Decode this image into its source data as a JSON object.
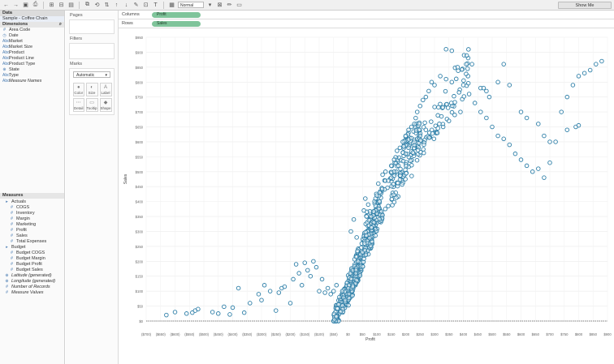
{
  "toolbar": {
    "marks_select": "Normal",
    "show_me_label": "Show Me"
  },
  "data_panel": {
    "header": "Data",
    "datasource": "Sample - Coffee Chain",
    "dimensions_header": "Dimensions",
    "dimensions": [
      {
        "label": "Area Code",
        "icon": "#"
      },
      {
        "label": "Date",
        "icon": "◷"
      },
      {
        "label": "Market",
        "icon": "Abc"
      },
      {
        "label": "Market Size",
        "icon": "Abc"
      },
      {
        "label": "Product",
        "icon": "Abc"
      },
      {
        "label": "Product Line",
        "icon": "Abc"
      },
      {
        "label": "Product Type",
        "icon": "Abc"
      },
      {
        "label": "State",
        "icon": "⊕"
      },
      {
        "label": "Type",
        "icon": "Abc"
      },
      {
        "label": "Measure Names",
        "icon": "Abc",
        "italic": true
      }
    ],
    "measures_header": "Measures",
    "measures": [
      {
        "label": "Actuals",
        "icon": "▸",
        "indent": 1
      },
      {
        "label": "COGS",
        "icon": "#",
        "indent": 3
      },
      {
        "label": "Inventory",
        "icon": "#",
        "indent": 3
      },
      {
        "label": "Margin",
        "icon": "#",
        "indent": 3
      },
      {
        "label": "Marketing",
        "icon": "#",
        "indent": 3
      },
      {
        "label": "Profit",
        "icon": "#",
        "indent": 3
      },
      {
        "label": "Sales",
        "icon": "#",
        "indent": 3
      },
      {
        "label": "Total Expenses",
        "icon": "#",
        "indent": 3
      },
      {
        "label": "Budget",
        "icon": "▸",
        "indent": 1
      },
      {
        "label": "Budget COGS",
        "icon": "#",
        "indent": 3
      },
      {
        "label": "Budget Margin",
        "icon": "#",
        "indent": 3
      },
      {
        "label": "Budget Profit",
        "icon": "#",
        "indent": 3
      },
      {
        "label": "Budget Sales",
        "icon": "#",
        "indent": 3
      },
      {
        "label": "Latitude (generated)",
        "icon": "⊕",
        "indent": 1,
        "italic": true
      },
      {
        "label": "Longitude (generated)",
        "icon": "⊕",
        "indent": 1,
        "italic": true
      },
      {
        "label": "Number of Records",
        "icon": "#",
        "indent": 1,
        "italic": true
      },
      {
        "label": "Measure Values",
        "icon": "#",
        "indent": 1,
        "italic": true
      }
    ]
  },
  "cards": {
    "pages_title": "Pages",
    "filters_title": "Filters",
    "marks_title": "Marks",
    "mark_type": "Automatic",
    "mark_buttons": [
      "Color",
      "Size",
      "Label",
      "Detail",
      "Tooltip",
      "Shape"
    ]
  },
  "shelves": {
    "columns_label": "Columns",
    "columns_pill": "Profit",
    "rows_label": "Rows",
    "rows_pill": "Sales"
  },
  "chart_data": {
    "type": "scatter",
    "xlabel": "Profit",
    "ylabel": "Sales",
    "mark_color": "#2e7fa8",
    "xlim": [
      -700,
      900
    ],
    "ylim": [
      0,
      950
    ],
    "x_ticks": [
      -700,
      -650,
      -600,
      -550,
      -500,
      -450,
      -400,
      -350,
      -300,
      -250,
      -200,
      -150,
      -100,
      -50,
      0,
      50,
      100,
      150,
      200,
      250,
      300,
      350,
      400,
      450,
      500,
      550,
      600,
      650,
      700,
      750,
      800,
      850,
      900
    ],
    "x_tick_labels": [
      "($700)",
      "($650)",
      "($600)",
      "($550)",
      "($500)",
      "($450)",
      "($400)",
      "($350)",
      "($300)",
      "($250)",
      "($200)",
      "($150)",
      "($100)",
      "($50)",
      "$0",
      "$50",
      "$100",
      "$150",
      "$200",
      "$250",
      "$300",
      "$350",
      "$400",
      "$450",
      "$500",
      "$550",
      "$600",
      "$650",
      "$700",
      "$750",
      "$800",
      "$850",
      "$900"
    ],
    "y_ticks": [
      0,
      50,
      100,
      150,
      200,
      250,
      300,
      350,
      400,
      450,
      500,
      550,
      600,
      650,
      700,
      750,
      800,
      850,
      900,
      950
    ],
    "y_tick_labels": [
      "$0",
      "$50",
      "$100",
      "$150",
      "$200",
      "$250",
      "$300",
      "$350",
      "$400",
      "$450",
      "$500",
      "$550",
      "$600",
      "$650",
      "$700",
      "$750",
      "$800",
      "$850",
      "$900",
      "$950"
    ],
    "outliers": [
      [
        -630,
        20
      ],
      [
        -600,
        30
      ],
      [
        -560,
        25
      ],
      [
        -540,
        28
      ],
      [
        -530,
        35
      ],
      [
        -520,
        40
      ],
      [
        -470,
        30
      ],
      [
        -450,
        25
      ],
      [
        -430,
        48
      ],
      [
        -410,
        22
      ],
      [
        -400,
        45
      ],
      [
        -380,
        110
      ],
      [
        -360,
        28
      ],
      [
        -340,
        60
      ],
      [
        -310,
        90
      ],
      [
        -300,
        70
      ],
      [
        -290,
        120
      ],
      [
        -270,
        100
      ],
      [
        -250,
        35
      ],
      [
        -240,
        95
      ],
      [
        -230,
        110
      ],
      [
        -220,
        115
      ],
      [
        -200,
        60
      ],
      [
        -190,
        140
      ],
      [
        -180,
        190
      ],
      [
        -170,
        160
      ],
      [
        -160,
        120
      ],
      [
        -150,
        195
      ],
      [
        -140,
        170
      ],
      [
        -130,
        150
      ],
      [
        -120,
        200
      ],
      [
        -110,
        180
      ],
      [
        -100,
        100
      ],
      [
        -90,
        140
      ],
      [
        -80,
        95
      ],
      [
        -70,
        110
      ],
      [
        -60,
        90
      ],
      [
        -50,
        100
      ],
      [
        -40,
        120
      ],
      [
        -30,
        80
      ],
      [
        -20,
        100
      ],
      [
        -10,
        70
      ],
      [
        10,
        300
      ],
      [
        20,
        340
      ],
      [
        30,
        280
      ],
      [
        55,
        370
      ],
      [
        60,
        410
      ],
      [
        70,
        390
      ],
      [
        80,
        350
      ],
      [
        90,
        330
      ],
      [
        100,
        420
      ],
      [
        105,
        460
      ],
      [
        110,
        430
      ],
      [
        120,
        490
      ],
      [
        130,
        500
      ],
      [
        140,
        470
      ],
      [
        150,
        520
      ],
      [
        160,
        540
      ],
      [
        170,
        570
      ],
      [
        180,
        580
      ],
      [
        190,
        600
      ],
      [
        200,
        620
      ],
      [
        210,
        640
      ],
      [
        220,
        650
      ],
      [
        230,
        660
      ],
      [
        240,
        700
      ],
      [
        250,
        720
      ],
      [
        260,
        740
      ],
      [
        270,
        750
      ],
      [
        280,
        770
      ],
      [
        290,
        800
      ],
      [
        300,
        790
      ],
      [
        320,
        820
      ],
      [
        340,
        810
      ],
      [
        360,
        800
      ],
      [
        380,
        850
      ],
      [
        400,
        790
      ],
      [
        420,
        760
      ],
      [
        440,
        730
      ],
      [
        460,
        700
      ],
      [
        480,
        680
      ],
      [
        500,
        650
      ],
      [
        520,
        620
      ],
      [
        540,
        610
      ],
      [
        560,
        590
      ],
      [
        580,
        560
      ],
      [
        600,
        540
      ],
      [
        620,
        520
      ],
      [
        640,
        500
      ],
      [
        660,
        510
      ],
      [
        680,
        480
      ],
      [
        700,
        530
      ],
      [
        720,
        600
      ],
      [
        740,
        700
      ],
      [
        760,
        750
      ],
      [
        780,
        790
      ],
      [
        800,
        820
      ],
      [
        820,
        830
      ],
      [
        840,
        840
      ],
      [
        860,
        860
      ],
      [
        880,
        870
      ],
      [
        340,
        910
      ],
      [
        360,
        905
      ],
      [
        410,
        860
      ],
      [
        430,
        860
      ],
      [
        460,
        780
      ],
      [
        480,
        770
      ],
      [
        520,
        800
      ],
      [
        540,
        860
      ],
      [
        560,
        790
      ],
      [
        600,
        700
      ],
      [
        620,
        680
      ],
      [
        660,
        660
      ],
      [
        680,
        620
      ],
      [
        700,
        600
      ],
      [
        760,
        640
      ],
      [
        790,
        650
      ],
      [
        800,
        655
      ],
      [
        470,
        780
      ],
      [
        490,
        750
      ],
      [
        390,
        700
      ],
      [
        370,
        690
      ],
      [
        350,
        670
      ],
      [
        330,
        650
      ],
      [
        310,
        630
      ],
      [
        200,
        560
      ],
      [
        210,
        580
      ],
      [
        230,
        600
      ],
      [
        250,
        620
      ],
      [
        270,
        640
      ],
      [
        150,
        480
      ],
      [
        160,
        500
      ],
      [
        175,
        520
      ]
    ],
    "clusters": [
      {
        "x": [
          -50,
          50
        ],
        "y": [
          0,
          200
        ],
        "count": 220
      },
      {
        "x": [
          0,
          120
        ],
        "y": [
          100,
          400
        ],
        "count": 200
      },
      {
        "x": [
          60,
          250
        ],
        "y": [
          300,
          650
        ],
        "count": 130
      },
      {
        "x": [
          150,
          420
        ],
        "y": [
          450,
          850
        ],
        "count": 110
      }
    ]
  }
}
